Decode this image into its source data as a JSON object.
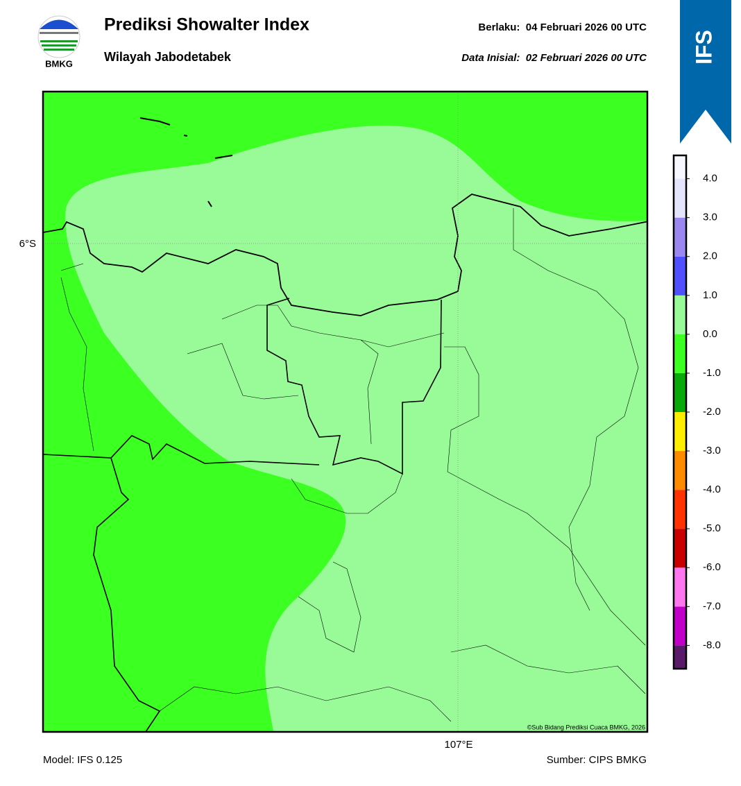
{
  "header": {
    "logo_text": "BMKG",
    "title": "Prediksi Showalter Index",
    "subtitle": "Wilayah Jabodetabek",
    "valid": "Berlaku:  04 Februari 2026 00 UTC",
    "init": "Data Inisial:  02 Februari 2026 00 UTC",
    "badge": "IFS"
  },
  "map": {
    "lat_labels": [
      "6°S"
    ],
    "lon_labels": [
      "107°E"
    ],
    "copyright": "©Sub Bidang Prediksi Cuaca BMKG, 2026"
  },
  "colorbar": {
    "range": [
      -8.6,
      4.6
    ],
    "bounds": [
      -8.6,
      -8,
      -7,
      -6,
      -5,
      -4,
      -3,
      -2,
      -1,
      0,
      1,
      2,
      3,
      4,
      4.6
    ],
    "colors": [
      "#5a1a6a",
      "#c000c8",
      "#ff77ee",
      "#c80000",
      "#ff3300",
      "#ff8c00",
      "#ffee00",
      "#0aa90a",
      "#3cff22",
      "#98fb98",
      "#5050ff",
      "#9a88f0",
      "#e4e4fa",
      "#f7f7ff"
    ],
    "ticks": [
      {
        "value": -8,
        "label": "-8.0"
      },
      {
        "value": -7,
        "label": "-7.0"
      },
      {
        "value": -6,
        "label": "-6.0"
      },
      {
        "value": -5,
        "label": "-5.0"
      },
      {
        "value": -4,
        "label": "-4.0"
      },
      {
        "value": -3,
        "label": "-3.0"
      },
      {
        "value": -2,
        "label": "-2.0"
      },
      {
        "value": -1,
        "label": "-1.0"
      },
      {
        "value": 0,
        "label": "0.0"
      },
      {
        "value": 1,
        "label": "1.0"
      },
      {
        "value": 2,
        "label": "2.0"
      },
      {
        "value": 3,
        "label": "3.0"
      },
      {
        "value": 4,
        "label": "4.0"
      }
    ]
  },
  "footer": {
    "model": "Model: IFS 0.125",
    "source": "Sumber: CIPS BMKG"
  }
}
